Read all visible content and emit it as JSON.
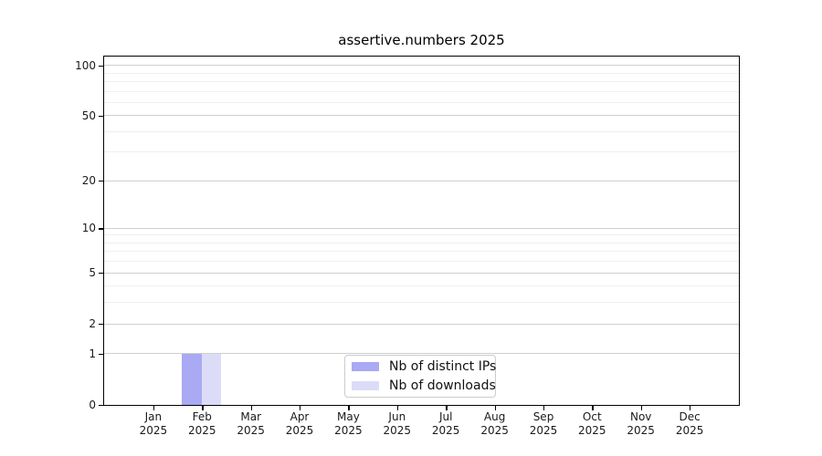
{
  "chart_data": {
    "type": "bar",
    "title": "assertive.numbers 2025",
    "xlabel": "",
    "ylabel": "",
    "categories": [
      "Jan 2025",
      "Feb 2025",
      "Mar 2025",
      "Apr 2025",
      "May 2025",
      "Jun 2025",
      "Jul 2025",
      "Aug 2025",
      "Sep 2025",
      "Oct 2025",
      "Nov 2025",
      "Dec 2025"
    ],
    "series": [
      {
        "name": "Nb of distinct IPs",
        "color": "#a9a9f4",
        "values": [
          0,
          1,
          0,
          0,
          0,
          0,
          0,
          0,
          0,
          0,
          0,
          0
        ]
      },
      {
        "name": "Nb of downloads",
        "color": "#dcdcf9",
        "values": [
          0,
          1,
          0,
          0,
          0,
          0,
          0,
          0,
          0,
          0,
          0,
          0
        ]
      }
    ],
    "y_scale": "log1p",
    "ylim": [
      0,
      112
    ],
    "y_major_ticks": [
      0,
      1,
      2,
      5,
      10,
      20,
      50,
      100
    ],
    "y_minor_ticks": [
      3,
      4,
      6,
      7,
      8,
      9,
      30,
      40,
      60,
      70,
      80,
      90
    ],
    "grid": "horizontal",
    "legend_position": "inside-bottom-center"
  },
  "legend": {
    "items": [
      {
        "label": "Nb of distinct IPs",
        "color": "#a9a9f4"
      },
      {
        "label": "Nb of downloads",
        "color": "#dcdcf9"
      }
    ]
  },
  "colors": {
    "major_gridline": "#cfcfcf",
    "minor_gridline": "#efefef",
    "spine": "#000000",
    "background": "#ffffff"
  }
}
